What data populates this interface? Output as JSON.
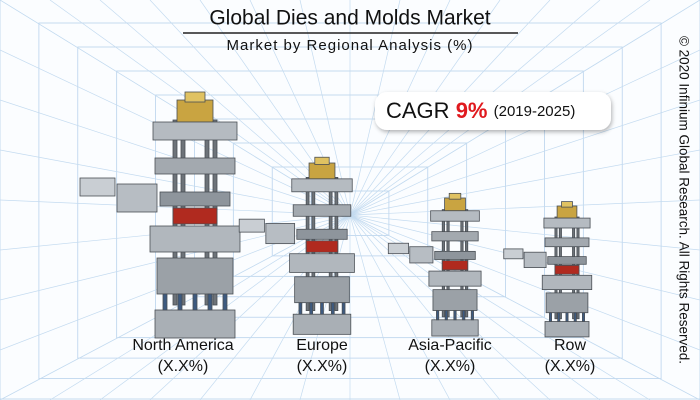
{
  "header": {
    "title": "Global Dies and Molds Market",
    "subtitle": "Market by Regional Analysis (%)"
  },
  "cagr": {
    "label": "CAGR",
    "value": "9%",
    "period": "(2019-2025)"
  },
  "regions": [
    {
      "name": "North America",
      "share": "(X.X%)"
    },
    {
      "name": "Europe",
      "share": "(X.X%)"
    },
    {
      "name": "Asia-Pacific",
      "share": "(X.X%)"
    },
    {
      "name": "Row",
      "share": "(X.X%)"
    }
  ],
  "copyright": "© 2020 Infinium Global Research. All Rights Reserved."
}
